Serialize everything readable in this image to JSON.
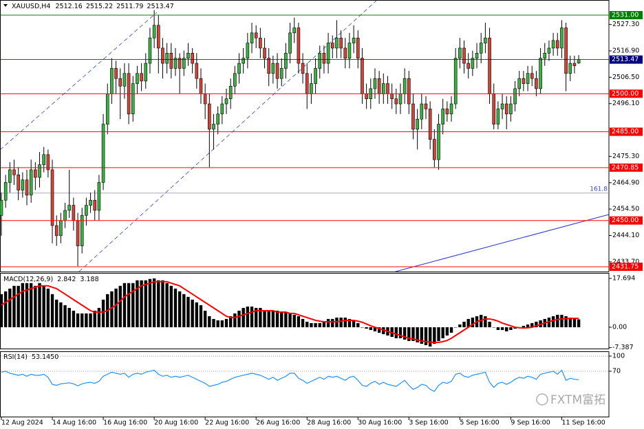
{
  "chart_data": [
    {
      "type": "candlestick",
      "title": "XAUUSD,H4",
      "categories": [
        "12 Aug 2024",
        null,
        null,
        null,
        null,
        null,
        null,
        null,
        null,
        null,
        null,
        null,
        "14 Aug 16:00",
        null,
        null,
        null,
        null,
        null,
        null,
        null,
        null,
        null,
        null,
        null,
        "16 Aug 16:00",
        null,
        null,
        null,
        null,
        null,
        null,
        null,
        null,
        null,
        null,
        null,
        "20 Aug 16:00",
        null,
        null,
        null,
        null,
        null,
        null,
        null,
        null,
        null,
        null,
        null,
        "22 Aug 16:00",
        null,
        null,
        null,
        null,
        null,
        null,
        null,
        null,
        null,
        null,
        null,
        "26 Aug 16:00",
        null,
        null,
        null,
        null,
        null,
        null,
        null,
        null,
        null,
        null,
        null,
        "28 Aug 16:00",
        null,
        null,
        null,
        null,
        null,
        null,
        null,
        null,
        null,
        null,
        null,
        "30 Aug 16:00",
        null,
        null,
        null,
        null,
        null,
        null,
        null,
        null,
        null,
        null,
        null,
        "3 Sep 16:00",
        null,
        null,
        null,
        null,
        null,
        null,
        null,
        null,
        null,
        null,
        null,
        "5 Sep 16:00",
        null,
        null,
        null,
        null,
        null,
        null,
        null,
        null,
        null,
        null,
        null,
        "9 Sep 16:00",
        null,
        null,
        null,
        null,
        null,
        null,
        null,
        null,
        null,
        null,
        null,
        "11 Sep 16:00",
        null,
        null,
        null,
        null
      ],
      "open": [
        2452,
        2458,
        2465,
        2470,
        2468,
        2462,
        2466,
        2460,
        2470,
        2467,
        2472,
        2476,
        2470,
        2448,
        2444,
        2450,
        2454,
        2456,
        2450,
        2440,
        2452,
        2456,
        2458,
        2454,
        2465,
        2488,
        2500,
        2510,
        2506,
        2503,
        2508,
        2492,
        2504,
        2508,
        2505,
        2512,
        2522,
        2527,
        2518,
        2512,
        2516,
        2510,
        2514,
        2510,
        2514,
        2516,
        2512,
        2506,
        2500,
        2496,
        2486,
        2488,
        2492,
        2496,
        2498,
        2503,
        2508,
        2512,
        2514,
        2520,
        2524,
        2522,
        2518,
        2514,
        2508,
        2512,
        2506,
        2510,
        2516,
        2524,
        2526,
        2512,
        2508,
        2500,
        2504,
        2510,
        2516,
        2512,
        2520,
        2518,
        2522,
        2518,
        2514,
        2520,
        2522,
        2514,
        2500,
        2498,
        2502,
        2506,
        2500,
        2504,
        2500,
        2498,
        2496,
        2500,
        2506,
        2496,
        2486,
        2490,
        2496,
        2494,
        2482,
        2474,
        2488,
        2494,
        2492,
        2496,
        2514,
        2518,
        2512,
        2510,
        2514,
        2516,
        2520,
        2522,
        2500,
        2488,
        2494,
        2496,
        2492,
        2496,
        2502,
        2506,
        2504,
        2508,
        2506,
        2502,
        2514,
        2516,
        2518,
        2521,
        2518,
        2526,
        2508,
        2512,
        2512.16
      ],
      "high": [
        2461,
        2468,
        2473,
        2474,
        2471,
        2469,
        2470,
        2474,
        2473,
        2477,
        2479,
        2478,
        2474,
        2452,
        2453,
        2457,
        2470,
        2459,
        2453,
        2455,
        2459,
        2461,
        2462,
        2468,
        2492,
        2504,
        2514,
        2513,
        2510,
        2512,
        2512,
        2507,
        2511,
        2512,
        2516,
        2526,
        2533,
        2531,
        2522,
        2520,
        2520,
        2518,
        2516,
        2517,
        2520,
        2518,
        2516,
        2510,
        2504,
        2500,
        2492,
        2495,
        2499,
        2502,
        2506,
        2511,
        2516,
        2518,
        2524,
        2528,
        2527,
        2526,
        2522,
        2518,
        2515,
        2516,
        2514,
        2520,
        2528,
        2530,
        2528,
        2516,
        2512,
        2508,
        2514,
        2519,
        2519,
        2524,
        2523,
        2529,
        2525,
        2522,
        2524,
        2527,
        2525,
        2518,
        2504,
        2506,
        2510,
        2509,
        2508,
        2507,
        2504,
        2502,
        2504,
        2510,
        2509,
        2500,
        2494,
        2500,
        2499,
        2497,
        2486,
        2492,
        2498,
        2497,
        2499,
        2518,
        2522,
        2521,
        2516,
        2517,
        2520,
        2524,
        2528,
        2526,
        2504,
        2497,
        2500,
        2499,
        2499,
        2505,
        2509,
        2509,
        2511,
        2511,
        2509,
        2518,
        2520,
        2521,
        2524,
        2524,
        2529,
        2528,
        2515,
        2515,
        2515.22
      ],
      "low": [
        2444,
        2455,
        2461,
        2464,
        2458,
        2459,
        2456,
        2457,
        2462,
        2463,
        2469,
        2467,
        2441,
        2440,
        2441,
        2447,
        2451,
        2446,
        2432,
        2437,
        2448,
        2453,
        2450,
        2450,
        2462,
        2484,
        2496,
        2500,
        2490,
        2498,
        2488,
        2489,
        2500,
        2501,
        2502,
        2508,
        2518,
        2508,
        2506,
        2508,
        2506,
        2507,
        2500,
        2507,
        2511,
        2508,
        2502,
        2496,
        2490,
        2471,
        2478,
        2484,
        2488,
        2492,
        2494,
        2500,
        2504,
        2508,
        2510,
        2516,
        2518,
        2514,
        2510,
        2503,
        2504,
        2502,
        2503,
        2506,
        2512,
        2520,
        2508,
        2504,
        2494,
        2496,
        2500,
        2506,
        2508,
        2508,
        2514,
        2514,
        2514,
        2510,
        2510,
        2516,
        2510,
        2496,
        2494,
        2494,
        2498,
        2496,
        2496,
        2496,
        2494,
        2492,
        2492,
        2496,
        2492,
        2482,
        2478,
        2486,
        2490,
        2478,
        2471,
        2470,
        2484,
        2489,
        2489,
        2494,
        2510,
        2508,
        2506,
        2507,
        2510,
        2512,
        2516,
        2496,
        2486,
        2486,
        2490,
        2486,
        2489,
        2493,
        2499,
        2501,
        2501,
        2503,
        2499,
        2500,
        2511,
        2513,
        2515,
        2515,
        2514,
        2501,
        2505,
        2508,
        2511.79
      ],
      "close": [
        2458,
        2465,
        2470,
        2468,
        2462,
        2466,
        2460,
        2470,
        2467,
        2472,
        2476,
        2470,
        2448,
        2444,
        2450,
        2454,
        2456,
        2450,
        2440,
        2452,
        2456,
        2458,
        2454,
        2465,
        2488,
        2500,
        2510,
        2506,
        2503,
        2508,
        2492,
        2504,
        2508,
        2505,
        2512,
        2522,
        2527,
        2518,
        2512,
        2516,
        2510,
        2514,
        2510,
        2514,
        2516,
        2512,
        2506,
        2500,
        2496,
        2486,
        2488,
        2492,
        2496,
        2498,
        2503,
        2508,
        2512,
        2514,
        2520,
        2524,
        2522,
        2518,
        2514,
        2508,
        2512,
        2506,
        2510,
        2516,
        2524,
        2526,
        2512,
        2508,
        2500,
        2504,
        2510,
        2516,
        2512,
        2520,
        2518,
        2522,
        2518,
        2514,
        2520,
        2522,
        2514,
        2500,
        2498,
        2502,
        2506,
        2500,
        2504,
        2500,
        2498,
        2496,
        2500,
        2506,
        2496,
        2486,
        2490,
        2496,
        2494,
        2482,
        2474,
        2488,
        2494,
        2492,
        2496,
        2514,
        2518,
        2512,
        2510,
        2514,
        2516,
        2520,
        2522,
        2500,
        2488,
        2494,
        2496,
        2492,
        2496,
        2502,
        2506,
        2504,
        2508,
        2506,
        2502,
        2514,
        2516,
        2518,
        2521,
        2518,
        2526,
        2508,
        2512,
        2511,
        2513.47
      ],
      "up_color": "#3cb043",
      "down_color": "#d0453a",
      "current_color": "#000080",
      "ylim": [
        2429.85,
        2536.97
      ],
      "yticks": [
        {
          "value": 2527.3,
          "label": "2527.30"
        },
        {
          "value": 2516.9,
          "label": "2516.90"
        },
        {
          "value": 2506.5,
          "label": "2506.50"
        },
        {
          "value": 2496.1,
          "label": "2496.10"
        },
        {
          "value": 2475.3,
          "label": "2475.30"
        },
        {
          "value": 2464.9,
          "label": "2464.90"
        },
        {
          "value": 2454.5,
          "label": "2454.50"
        },
        {
          "value": 2444.1,
          "label": "2444.10"
        },
        {
          "value": 2433.7,
          "label": "2433.70"
        }
      ],
      "levels": [
        {
          "value": 2531,
          "label": "2531.00",
          "color": "#008000"
        },
        {
          "value": 2500,
          "label": "2500.00",
          "color": "#ff0000"
        },
        {
          "value": 2485,
          "label": "2485.00",
          "color": "#ff0000"
        },
        {
          "value": 2470.85,
          "label": "2470.85",
          "color": "#ff0000"
        },
        {
          "value": 2450,
          "label": "2450.00",
          "color": "#ff0000"
        },
        {
          "value": 2431.75,
          "label": "2431.75",
          "color": "#ff0000"
        }
      ],
      "annotations": [
        {
          "value": 2460.8,
          "label": "161.8"
        }
      ]
    },
    {
      "type": "macd",
      "title": "MACD(12,26,9)",
      "series": [
        {
          "type": "bar",
          "color": "#000000",
          "values": [
            12,
            13,
            14,
            15,
            15,
            16,
            16,
            16,
            15,
            16,
            15,
            14,
            12,
            10,
            9,
            8,
            7,
            6,
            5,
            5,
            5,
            5,
            6,
            7,
            10,
            12,
            13,
            14,
            15,
            16,
            16,
            16,
            17,
            17,
            17,
            17.5,
            17.7,
            17,
            17,
            16,
            15,
            14,
            13,
            12,
            11,
            10,
            9,
            8,
            6,
            4,
            3,
            2.5,
            2.5,
            3,
            4,
            5,
            6,
            7,
            7.5,
            7.5,
            7,
            7,
            6,
            6,
            6,
            6,
            5.5,
            5.5,
            5,
            4.5,
            4,
            3,
            2,
            1.5,
            1.5,
            1.5,
            2,
            3,
            3,
            3.5,
            3.5,
            3.5,
            3,
            2.5,
            1.5,
            0,
            -0.5,
            -1,
            -1.5,
            -2,
            -2.5,
            -3,
            -3.5,
            -4,
            -4,
            -4.5,
            -5,
            -5,
            -5.5,
            -6,
            -6.5,
            -7,
            -6,
            -5,
            -4,
            -3,
            -2,
            0,
            1,
            2,
            3,
            3.5,
            4,
            4.5,
            4,
            2,
            0,
            -1,
            -1,
            -1.5,
            -1,
            -0.5,
            0,
            0.5,
            1,
            1.5,
            2,
            2.5,
            3,
            3.5,
            4,
            4.5,
            4.5,
            4,
            3.5,
            3.2,
            2.842
          ]
        },
        {
          "type": "line",
          "color": "#ff0000",
          "values": [
            8,
            9,
            10,
            11,
            12,
            13,
            13.5,
            14,
            14.5,
            15,
            15,
            15,
            14.5,
            14,
            13,
            12,
            11,
            10,
            9,
            8,
            7,
            6,
            5.5,
            5.5,
            5.5,
            6,
            7,
            8,
            9.5,
            11,
            12,
            13,
            14,
            15,
            15.5,
            16,
            16.5,
            16.5,
            16.5,
            16.5,
            16,
            15.5,
            15,
            14,
            13,
            12,
            11,
            10,
            9,
            8,
            7,
            6,
            5,
            4,
            3.5,
            3.5,
            4,
            4.5,
            5,
            5.5,
            6,
            6,
            6,
            6,
            6,
            5.5,
            5.5,
            5.5,
            5,
            5,
            4.5,
            4,
            3.5,
            3,
            2.5,
            2.2,
            2,
            2,
            2,
            2,
            2.2,
            2.5,
            2.5,
            2.5,
            2.2,
            1.8,
            1.2,
            0.5,
            0,
            -0.5,
            -1,
            -1.5,
            -2,
            -2.5,
            -3,
            -3.5,
            -4,
            -4.3,
            -4.6,
            -5,
            -5.2,
            -5.4,
            -5.5,
            -5.5,
            -5.2,
            -4.8,
            -4,
            -3,
            -2,
            -1,
            0,
            1,
            2,
            2.5,
            3,
            3,
            2.7,
            2.2,
            1.5,
            1,
            0.5,
            0,
            -0.2,
            -0.3,
            -0.2,
            0,
            0.5,
            1,
            1.5,
            2,
            2.5,
            2.8,
            3,
            3.1,
            3.2,
            3.2,
            3.188
          ]
        }
      ],
      "ylim": [
        -7.73,
        19.68
      ],
      "yticks": [
        17.694,
        {
          "value": 0,
          "label": "0.00"
        },
        -7.387
      ]
    },
    {
      "type": "line",
      "title": "RSI(14)",
      "color": "#1e90ff",
      "values": [
        68,
        70,
        66,
        64,
        62,
        64,
        60,
        64,
        62,
        62,
        64,
        58,
        44,
        42,
        45,
        46,
        47,
        45,
        41,
        45,
        47,
        48,
        46,
        50,
        60,
        64,
        68,
        66,
        64,
        66,
        58,
        64,
        66,
        64,
        68,
        70,
        72,
        64,
        60,
        62,
        58,
        60,
        58,
        60,
        62,
        58,
        54,
        50,
        46,
        40,
        42,
        44,
        48,
        50,
        54,
        58,
        60,
        62,
        64,
        66,
        64,
        62,
        58,
        54,
        58,
        52,
        56,
        60,
        66,
        66,
        56,
        52,
        46,
        50,
        54,
        58,
        54,
        60,
        58,
        60,
        56,
        52,
        58,
        60,
        52,
        42,
        40,
        46,
        50,
        44,
        48,
        44,
        42,
        40,
        46,
        52,
        42,
        34,
        38,
        44,
        42,
        34,
        30,
        42,
        48,
        46,
        50,
        64,
        66,
        60,
        58,
        62,
        64,
        66,
        68,
        48,
        38,
        46,
        48,
        44,
        48,
        54,
        58,
        56,
        60,
        58,
        54,
        64,
        66,
        68,
        70,
        64,
        72,
        52,
        56,
        54,
        53.145
      ],
      "current_label": "53.1450",
      "ylim": [
        -21.4,
        109.5
      ],
      "yticks": [
        100,
        70
      ],
      "grid": "dotted"
    }
  ],
  "watermark": "FXTM富拓"
}
